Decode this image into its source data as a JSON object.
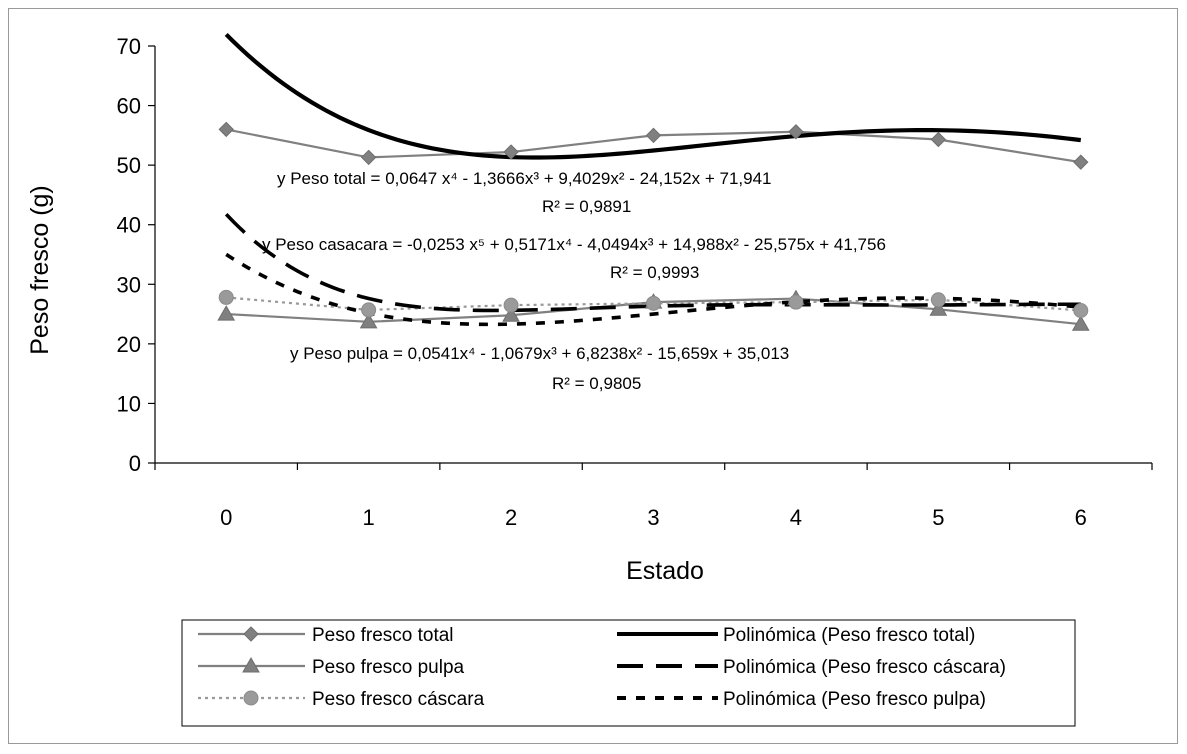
{
  "chart_data": {
    "type": "line",
    "title": "",
    "xlabel": "Estado",
    "ylabel": "Peso fresco (g)",
    "x": [
      0,
      1,
      2,
      3,
      4,
      5,
      6
    ],
    "xlim": [
      -0.5,
      6.5
    ],
    "ylim": [
      0,
      70
    ],
    "yticks": [
      0,
      10,
      20,
      30,
      40,
      50,
      60,
      70
    ],
    "grid": false,
    "legend_position": "bottom",
    "series": [
      {
        "name": "Peso fresco total",
        "values": [
          56.0,
          51.3,
          52.2,
          55.0,
          55.6,
          54.3,
          50.5
        ],
        "color": "#808080",
        "marker": "diamond",
        "line": "solid"
      },
      {
        "name": "Peso fresco pulpa",
        "values": [
          25.0,
          23.7,
          24.8,
          27.0,
          27.6,
          25.8,
          23.3
        ],
        "color": "#808080",
        "marker": "triangle",
        "line": "solid"
      },
      {
        "name": "Peso fresco cáscara",
        "values": [
          27.8,
          25.7,
          26.5,
          26.8,
          27.0,
          27.4,
          25.6
        ],
        "color": "#999999",
        "marker": "circle",
        "line": "dotted"
      }
    ],
    "trendlines": [
      {
        "name": "Polinómica (Peso fresco total)",
        "coefficients": [
          71.941,
          -24.152,
          9.4029,
          -1.3666,
          0.0647
        ],
        "style": "solid",
        "color": "#000000"
      },
      {
        "name": "Polinómica (Peso fresco cáscara)",
        "coefficients": [
          41.756,
          -25.575,
          14.988,
          -4.0494,
          0.5171,
          -0.0253
        ],
        "style": "long-dash",
        "color": "#000000"
      },
      {
        "name": "Polinómica (Peso fresco pulpa)",
        "coefficients": [
          35.013,
          -15.659,
          6.8238,
          -1.0679,
          0.0541
        ],
        "style": "short-dash",
        "color": "#000000"
      }
    ],
    "annotations": [
      {
        "id": "total",
        "equation": "y Peso total = 0,0647 x⁴  - 1,3666x³ + 9,4029x² - 24,152x + 71,941",
        "r2": "R² = 0,9891"
      },
      {
        "id": "cascara",
        "equation": "y Peso casacara = -0,0253 x⁵ + 0,5171x⁴ - 4,0494x³ + 14,988x² - 25,575x + 41,756",
        "r2": "R² = 0,9993"
      },
      {
        "id": "pulpa",
        "equation": "y Peso pulpa = 0,0541x⁴  - 1,0679x³ + 6,8238x² - 15,659x + 35,013",
        "r2": "R² = 0,9805"
      }
    ]
  }
}
